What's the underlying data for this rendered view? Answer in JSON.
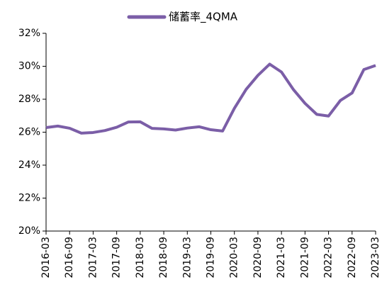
{
  "chart_data": {
    "type": "line",
    "categories": [
      "2016-03",
      null,
      "2016-09",
      null,
      "2017-03",
      null,
      "2017-09",
      null,
      "2018-03",
      null,
      "2018-09",
      null,
      "2019-03",
      null,
      "2019-09",
      null,
      "2020-03",
      null,
      "2020-09",
      null,
      "2021-03",
      null,
      "2021-09",
      null,
      "2022-03",
      null,
      "2022-09",
      null,
      "2023-03"
    ],
    "series": [
      {
        "name": "储蓄率_4QMA",
        "color": "#7b5ea7",
        "values": [
          26.28,
          26.37,
          26.24,
          25.94,
          25.98,
          26.1,
          26.3,
          26.62,
          26.63,
          26.23,
          26.2,
          26.13,
          26.25,
          26.33,
          26.15,
          26.07,
          27.45,
          28.6,
          29.45,
          30.13,
          29.65,
          28.6,
          27.75,
          27.08,
          26.98,
          27.92,
          28.38,
          29.8,
          30.05
        ]
      }
    ],
    "ylim": [
      20,
      32
    ],
    "yticks": [
      {
        "value": 20,
        "label": "20%"
      },
      {
        "value": 22,
        "label": "22%"
      },
      {
        "value": 24,
        "label": "24%"
      },
      {
        "value": 26,
        "label": "26%"
      },
      {
        "value": 28,
        "label": "28%"
      },
      {
        "value": 30,
        "label": "30%"
      },
      {
        "value": 32,
        "label": "32%"
      }
    ],
    "legend": "top"
  }
}
